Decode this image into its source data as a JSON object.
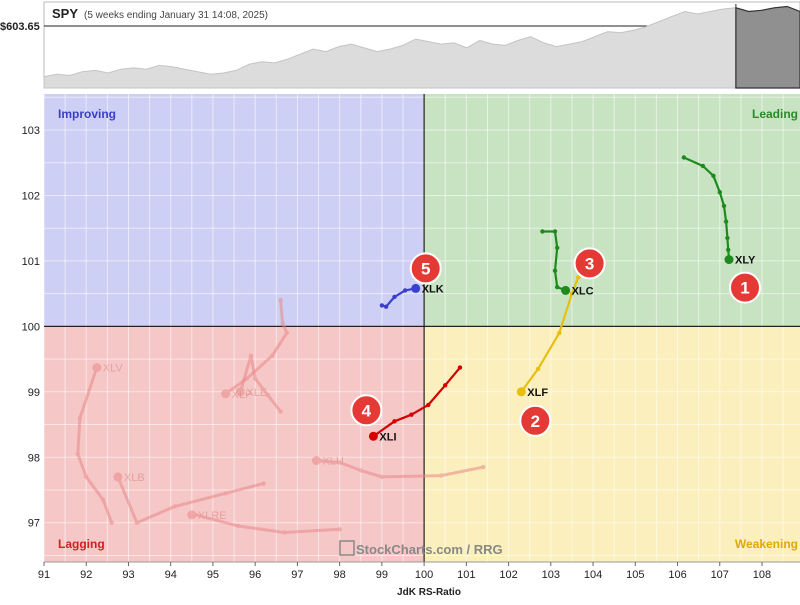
{
  "header": {
    "symbol": "SPY",
    "period": "(5 weeks ending January 31 14:08, 2025)",
    "price_label": "$603.65"
  },
  "watermark": "StockCharts.com / RRG",
  "colors": {
    "improving": "#cdd0f4",
    "leading": "#c8e3c2",
    "weakening": "#fbefbd",
    "lagging": "#f6c7c7",
    "improving_text": "#3a3fc4",
    "leading_text": "#2a8a2a",
    "weakening_text": "#e0a800",
    "lagging_text": "#d02020",
    "badge": "#e53935"
  },
  "chart_data": [
    {
      "type": "area",
      "title": "",
      "series_name": "SPY",
      "values": [
        574,
        576,
        575,
        578,
        579,
        577,
        580,
        581,
        580,
        583,
        582,
        580,
        578,
        576,
        577,
        579,
        584,
        586,
        585,
        588,
        592,
        596,
        594,
        598,
        600,
        597,
        594,
        596,
        599,
        604,
        602,
        600,
        601,
        597,
        603,
        600,
        599,
        603,
        606,
        601,
        598,
        600,
        602,
        606,
        610,
        609,
        611,
        614,
        618,
        622,
        626,
        624,
        626,
        628,
        629,
        626,
        627,
        629,
        630,
        626
      ],
      "highlight_from_index": 54,
      "ylim": [
        565,
        632
      ]
    },
    {
      "type": "scatter",
      "title": "",
      "xlabel": "JdK RS-Ratio",
      "ylabel": "",
      "xlim": [
        91,
        108.9
      ],
      "ylim": [
        96.4,
        103.55
      ],
      "x_ticks": [
        "91",
        "92",
        "93",
        "94",
        "95",
        "96",
        "97",
        "98",
        "99",
        "100",
        "101",
        "102",
        "103",
        "104",
        "105",
        "106",
        "107",
        "108"
      ],
      "y_ticks": [
        "97",
        "98",
        "99",
        "100",
        "101",
        "102",
        "103"
      ],
      "center": [
        100,
        100
      ],
      "quadrants": {
        "improving": "Improving",
        "leading": "Leading",
        "weakening": "Weakening",
        "lagging": "Lagging"
      },
      "series": [
        {
          "name": "XLY",
          "color": "#1e8a1e",
          "faded": false,
          "badge": "1",
          "points": [
            [
              106.15,
              102.58
            ],
            [
              106.6,
              102.45
            ],
            [
              106.85,
              102.3
            ],
            [
              107.0,
              102.05
            ],
            [
              107.1,
              101.84
            ],
            [
              107.15,
              101.6
            ],
            [
              107.18,
              101.35
            ],
            [
              107.2,
              101.17
            ],
            [
              107.22,
              101.02
            ]
          ]
        },
        {
          "name": "XLF",
          "color": "#e8bf10",
          "faded": false,
          "badge": "2",
          "points": [
            [
              103.65,
              100.75
            ],
            [
              103.5,
              100.5
            ],
            [
              103.2,
              99.9
            ],
            [
              102.7,
              99.35
            ],
            [
              102.3,
              99.0
            ]
          ]
        },
        {
          "name": "XLC",
          "color": "#1e8a1e",
          "faded": false,
          "badge": "3",
          "points": [
            [
              102.8,
              101.45
            ],
            [
              103.1,
              101.45
            ],
            [
              103.15,
              101.2
            ],
            [
              103.1,
              100.85
            ],
            [
              103.15,
              100.6
            ],
            [
              103.35,
              100.55
            ]
          ]
        },
        {
          "name": "XLI",
          "color": "#d40000",
          "faded": false,
          "badge": "4",
          "points": [
            [
              100.85,
              99.37
            ],
            [
              100.5,
              99.1
            ],
            [
              100.1,
              98.8
            ],
            [
              99.7,
              98.65
            ],
            [
              99.3,
              98.55
            ],
            [
              98.8,
              98.32
            ]
          ]
        },
        {
          "name": "XLK",
          "color": "#3a3fd0",
          "faded": false,
          "badge": "5",
          "points": [
            [
              99.0,
              100.32
            ],
            [
              99.1,
              100.3
            ],
            [
              99.3,
              100.45
            ],
            [
              99.55,
              100.55
            ],
            [
              99.8,
              100.58
            ]
          ]
        },
        {
          "name": "XLV",
          "color": "#e88888",
          "faded": true,
          "badge": "",
          "points": [
            [
              92.6,
              97.0
            ],
            [
              92.4,
              97.35
            ],
            [
              92.0,
              97.7
            ],
            [
              91.8,
              98.05
            ],
            [
              91.85,
              98.6
            ],
            [
              92.25,
              99.37
            ]
          ]
        },
        {
          "name": "XLB",
          "color": "#e88888",
          "faded": true,
          "badge": "",
          "points": [
            [
              96.2,
              97.6
            ],
            [
              95.3,
              97.45
            ],
            [
              94.1,
              97.25
            ],
            [
              93.2,
              97.0
            ],
            [
              92.75,
              97.7
            ]
          ]
        },
        {
          "name": "XLRE",
          "color": "#e88888",
          "faded": true,
          "badge": "",
          "points": [
            [
              98.0,
              96.9
            ],
            [
              96.7,
              96.85
            ],
            [
              95.6,
              96.95
            ],
            [
              94.6,
              97.12
            ],
            [
              94.5,
              97.12
            ]
          ]
        },
        {
          "name": "XLU",
          "color": "#e88888",
          "faded": true,
          "badge": "",
          "points": [
            [
              101.4,
              97.85
            ],
            [
              100.4,
              97.72
            ],
            [
              99.0,
              97.7
            ],
            [
              98.5,
              97.8
            ],
            [
              98.0,
              97.92
            ],
            [
              97.45,
              97.95
            ]
          ]
        },
        {
          "name": "XLE",
          "color": "#e88888",
          "faded": true,
          "badge": "",
          "points": [
            [
              96.6,
              98.7
            ],
            [
              96.3,
              98.95
            ],
            [
              96.0,
              99.2
            ],
            [
              95.9,
              99.55
            ],
            [
              95.65,
              99.0
            ]
          ]
        },
        {
          "name": "XLP",
          "color": "#e88888",
          "faded": true,
          "badge": "",
          "points": [
            [
              96.6,
              100.4
            ],
            [
              96.65,
              100.05
            ],
            [
              96.75,
              99.9
            ],
            [
              96.4,
              99.55
            ],
            [
              95.8,
              99.2
            ],
            [
              95.3,
              98.97
            ]
          ]
        }
      ]
    }
  ]
}
